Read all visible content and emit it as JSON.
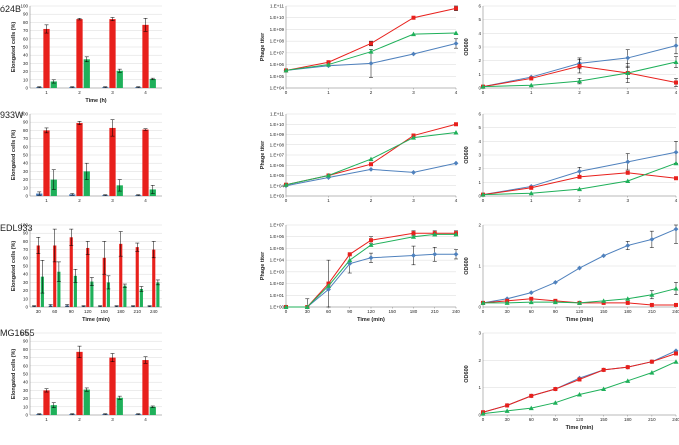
{
  "strains": [
    "ó24B",
    "933W",
    "EDL933",
    "MG1655"
  ],
  "series_colors": {
    "blue": "#4f81bd",
    "red": "#e8201c",
    "green": "#1fb05a"
  },
  "chart_data": [
    {
      "type": "bar",
      "row": 0,
      "panel": "elongated",
      "strain": "ó24B",
      "ylabel": "Elongated cells (%)",
      "xlabel": "Time (h)",
      "categories": [
        "1",
        "2",
        "3",
        "4"
      ],
      "ylim": [
        0,
        100
      ],
      "yticks": [
        "0",
        "10",
        "20",
        "30",
        "40",
        "50",
        "60",
        "70",
        "80",
        "90",
        "100"
      ],
      "series": [
        {
          "name": "blue",
          "values": [
            1,
            1,
            1,
            1
          ],
          "err": [
            0.5,
            0.5,
            0.5,
            0.5
          ]
        },
        {
          "name": "red",
          "values": [
            72,
            84,
            84,
            77
          ],
          "err": [
            5,
            1,
            2,
            8
          ]
        },
        {
          "name": "green",
          "values": [
            8,
            35,
            21,
            11
          ],
          "err": [
            2,
            3,
            2,
            1
          ]
        }
      ]
    },
    {
      "type": "line",
      "row": 0,
      "panel": "phage",
      "strain": "ó24B",
      "ylabel": "Phage titer",
      "xlabel": "",
      "x": [
        0,
        1,
        2,
        3,
        4
      ],
      "xticks": [
        "0",
        "1",
        "2",
        "3",
        "4"
      ],
      "log": true,
      "ylim": [
        4,
        11
      ],
      "yticks": [
        "1.E+04",
        "1.E+05",
        "1.E+06",
        "1.E+07",
        "1.E+08",
        "1.E+09",
        "1.E+10",
        "1.E+11"
      ],
      "series": [
        {
          "name": "blue",
          "values": [
            5.5,
            5.9,
            6.1,
            6.9,
            7.8
          ],
          "err": [
            0,
            0,
            1.2,
            0,
            0.4
          ]
        },
        {
          "name": "red",
          "values": [
            5.5,
            6.2,
            7.8,
            10,
            10.8
          ],
          "err": [
            0,
            0,
            0.2,
            0.1,
            0.2
          ]
        },
        {
          "name": "green",
          "values": [
            5.5,
            6,
            7.1,
            8.6,
            8.7
          ],
          "err": [
            0,
            0,
            0,
            0,
            0
          ]
        }
      ]
    },
    {
      "type": "line",
      "row": 0,
      "panel": "od",
      "strain": "ó24B",
      "ylabel": "OD600",
      "xlabel": "",
      "x": [
        0,
        1,
        2,
        3,
        4
      ],
      "xticks": [
        "0",
        "1",
        "2",
        "3",
        "4"
      ],
      "ylim": [
        0,
        6
      ],
      "yticks": [
        "0",
        "1",
        "2",
        "3",
        "4",
        "5",
        "6"
      ],
      "series": [
        {
          "name": "blue",
          "values": [
            0.1,
            0.8,
            1.8,
            2.2,
            3.1
          ],
          "err": [
            0,
            0,
            0.4,
            0.6,
            0.6
          ]
        },
        {
          "name": "red",
          "values": [
            0.1,
            0.7,
            1.6,
            1.1,
            0.4
          ],
          "err": [
            0,
            0,
            0.5,
            0.7,
            0.3
          ]
        },
        {
          "name": "green",
          "values": [
            0.1,
            0.2,
            0.5,
            1.1,
            1.9
          ],
          "err": [
            0,
            0,
            0.2,
            0.4,
            0.4
          ]
        }
      ]
    },
    {
      "type": "bar",
      "row": 1,
      "panel": "elongated",
      "strain": "933W",
      "ylabel": "Elongated cells (%)",
      "xlabel": "",
      "categories": [
        "1",
        "2",
        "3",
        "4"
      ],
      "ylim": [
        0,
        100
      ],
      "yticks": [
        "0",
        "10",
        "20",
        "30",
        "40",
        "50",
        "60",
        "70",
        "80",
        "90",
        "100"
      ],
      "series": [
        {
          "name": "blue",
          "values": [
            3,
            2,
            1,
            1
          ],
          "err": [
            2,
            1,
            0.5,
            0.5
          ]
        },
        {
          "name": "red",
          "values": [
            80,
            89,
            83,
            81
          ],
          "err": [
            3,
            2,
            10,
            1
          ]
        },
        {
          "name": "green",
          "values": [
            20,
            30,
            13,
            8
          ],
          "err": [
            12,
            10,
            7,
            5
          ]
        }
      ]
    },
    {
      "type": "line",
      "row": 1,
      "panel": "phage",
      "strain": "933W",
      "ylabel": "Phage titer",
      "xlabel": "",
      "x": [
        0,
        1,
        2,
        3,
        4
      ],
      "xticks": [
        "0",
        "1",
        "2",
        "3",
        "4"
      ],
      "log": true,
      "ylim": [
        3,
        11
      ],
      "yticks": [
        "1.E+03",
        "1.E+04",
        "1.E+05",
        "1.E+06",
        "1.E+07",
        "1.E+08",
        "1.E+09",
        "1.E+10",
        "1.E+11"
      ],
      "series": [
        {
          "name": "blue",
          "values": [
            4,
            4.8,
            5.6,
            5.3,
            6.2
          ],
          "err": [
            0,
            0,
            0,
            0,
            0
          ]
        },
        {
          "name": "red",
          "values": [
            4.1,
            5,
            6.1,
            8.9,
            10
          ],
          "err": [
            0,
            0,
            0,
            0,
            0
          ]
        },
        {
          "name": "green",
          "values": [
            4.1,
            5,
            6.6,
            8.7,
            9.2
          ],
          "err": [
            0,
            0,
            0,
            0,
            0
          ]
        }
      ]
    },
    {
      "type": "line",
      "row": 1,
      "panel": "od",
      "strain": "933W",
      "ylabel": "OD600",
      "xlabel": "",
      "x": [
        0,
        1,
        2,
        3,
        4
      ],
      "xticks": [
        "0",
        "1",
        "2",
        "3",
        "4"
      ],
      "ylim": [
        0,
        6
      ],
      "yticks": [
        "0",
        "1",
        "2",
        "3",
        "4",
        "5",
        "6"
      ],
      "series": [
        {
          "name": "blue",
          "values": [
            0.1,
            0.7,
            1.8,
            2.5,
            3.2
          ],
          "err": [
            0,
            0,
            0.3,
            0.6,
            0.8
          ]
        },
        {
          "name": "red",
          "values": [
            0.1,
            0.6,
            1.4,
            1.7,
            1.3
          ],
          "err": [
            0,
            0,
            0,
            0,
            0
          ]
        },
        {
          "name": "green",
          "values": [
            0.1,
            0.2,
            0.5,
            1.1,
            2.4
          ],
          "err": [
            0,
            0,
            0,
            0,
            0
          ]
        }
      ]
    },
    {
      "type": "bar",
      "row": 2,
      "panel": "elongated",
      "strain": "EDL933",
      "ylabel": "Elongated cells (%)",
      "xlabel": "Time (min)",
      "categories": [
        "30",
        "60",
        "90",
        "120",
        "150",
        "180",
        "210",
        "240"
      ],
      "ylim": [
        0,
        100
      ],
      "yticks": [
        "0",
        "10",
        "20",
        "30",
        "40",
        "50",
        "60",
        "70",
        "80",
        "90",
        "100"
      ],
      "series": [
        {
          "name": "blue",
          "values": [
            1,
            2,
            2,
            1,
            1,
            1,
            1,
            1
          ],
          "err": [
            0.5,
            1,
            1,
            0.5,
            0.5,
            0.5,
            0.5,
            0.5
          ]
        },
        {
          "name": "red",
          "values": [
            75,
            75,
            85,
            72,
            60,
            77,
            73,
            70
          ],
          "err": [
            10,
            20,
            10,
            8,
            20,
            15,
            5,
            10
          ]
        },
        {
          "name": "green",
          "values": [
            37,
            43,
            38,
            31,
            30,
            26,
            22,
            30
          ],
          "err": [
            20,
            12,
            8,
            5,
            8,
            2,
            3,
            3
          ]
        }
      ]
    },
    {
      "type": "line",
      "row": 2,
      "panel": "phage",
      "strain": "EDL933",
      "ylabel": "Phage titer",
      "xlabel": "Time (min)",
      "x": [
        0,
        30,
        60,
        90,
        120,
        180,
        210,
        240
      ],
      "xticks": [
        "0",
        "30",
        "60",
        "90",
        "120",
        "150",
        "180",
        "210",
        "240"
      ],
      "log": true,
      "ylim": [
        0,
        7
      ],
      "yticks": [
        "1.E+00",
        "1.E+01",
        "1.E+02",
        "1.E+03",
        "1.E+04",
        "1.E+05",
        "1.E+06",
        "1.E+07"
      ],
      "series": [
        {
          "name": "blue",
          "values": [
            0,
            0,
            1.5,
            3.7,
            4.2,
            4.4,
            4.5,
            4.5
          ],
          "err": [
            0,
            0.7,
            2.5,
            0.8,
            0.4,
            0.8,
            0.6,
            0.4
          ]
        },
        {
          "name": "red",
          "values": [
            0,
            0,
            2,
            4.5,
            5.7,
            6.3,
            6.3,
            6.3
          ],
          "err": [
            0,
            0,
            0,
            0,
            0.3,
            0.2,
            0.2,
            0.2
          ]
        },
        {
          "name": "green",
          "values": [
            0,
            0,
            1.8,
            4,
            5.3,
            6,
            6.2,
            6.2
          ],
          "err": [
            0,
            0,
            0,
            0,
            0,
            0,
            0,
            0
          ]
        }
      ]
    },
    {
      "type": "line",
      "row": 2,
      "panel": "od",
      "strain": "EDL933",
      "ylabel": "OD600",
      "xlabel": "Time (min)",
      "x": [
        0,
        30,
        60,
        90,
        120,
        150,
        180,
        210,
        240
      ],
      "xticks": [
        "0",
        "30",
        "60",
        "90",
        "120",
        "150",
        "180",
        "210",
        "240"
      ],
      "ylim": [
        0,
        2
      ],
      "yticks": [
        "0",
        "1",
        "2"
      ],
      "series": [
        {
          "name": "blue",
          "values": [
            0.1,
            0.2,
            0.35,
            0.6,
            0.95,
            1.25,
            1.5,
            1.65,
            1.9
          ],
          "err": [
            0,
            0,
            0,
            0,
            0,
            0,
            0.1,
            0.2,
            0.35
          ]
        },
        {
          "name": "red",
          "values": [
            0.1,
            0.15,
            0.2,
            0.15,
            0.1,
            0.1,
            0.1,
            0.05,
            0.05
          ],
          "err": [
            0,
            0,
            0,
            0,
            0,
            0,
            0,
            0,
            0
          ]
        },
        {
          "name": "green",
          "values": [
            0.1,
            0.1,
            0.12,
            0.12,
            0.1,
            0.15,
            0.2,
            0.3,
            0.45
          ],
          "err": [
            0,
            0,
            0,
            0,
            0,
            0,
            0,
            0.1,
            0.15
          ]
        }
      ]
    },
    {
      "type": "bar",
      "row": 3,
      "panel": "elongated",
      "strain": "MG1655",
      "ylabel": "Elongated cells (%)",
      "xlabel": "",
      "categories": [
        "1",
        "2",
        "3",
        "4"
      ],
      "ylim": [
        0,
        100
      ],
      "yticks": [
        "0",
        "10",
        "20",
        "30",
        "40",
        "50",
        "60",
        "70",
        "80",
        "90",
        "100"
      ],
      "series": [
        {
          "name": "blue",
          "values": [
            1,
            1,
            1,
            1
          ],
          "err": [
            0.5,
            0.5,
            0.5,
            0.5
          ]
        },
        {
          "name": "red",
          "values": [
            30,
            77,
            70,
            67
          ],
          "err": [
            2,
            7,
            5,
            4
          ]
        },
        {
          "name": "green",
          "values": [
            12,
            31,
            21,
            10
          ],
          "err": [
            3,
            2,
            2,
            1
          ]
        }
      ]
    },
    {
      "type": "line",
      "row": 3,
      "panel": "od",
      "strain": "MG1655",
      "ylabel": "OD600",
      "xlabel": "Time (min)",
      "x": [
        0,
        30,
        60,
        90,
        120,
        150,
        180,
        210,
        240
      ],
      "xticks": [
        "0",
        "30",
        "60",
        "90",
        "120",
        "150",
        "180",
        "210",
        "240"
      ],
      "ylim": [
        0,
        3
      ],
      "yticks": [
        "0",
        "1",
        "2",
        "3"
      ],
      "series": [
        {
          "name": "blue",
          "values": [
            0.1,
            0.35,
            0.7,
            0.95,
            1.35,
            1.65,
            1.75,
            1.95,
            2.35
          ],
          "err": [
            0,
            0,
            0,
            0,
            0,
            0,
            0,
            0,
            0
          ]
        },
        {
          "name": "red",
          "values": [
            0.1,
            0.35,
            0.7,
            0.95,
            1.3,
            1.65,
            1.75,
            1.95,
            2.25
          ],
          "err": [
            0,
            0,
            0,
            0,
            0,
            0,
            0,
            0,
            0
          ]
        },
        {
          "name": "green",
          "values": [
            0.05,
            0.15,
            0.25,
            0.45,
            0.75,
            0.95,
            1.25,
            1.55,
            1.95
          ],
          "err": [
            0,
            0,
            0,
            0,
            0,
            0,
            0,
            0,
            0
          ]
        }
      ]
    }
  ]
}
